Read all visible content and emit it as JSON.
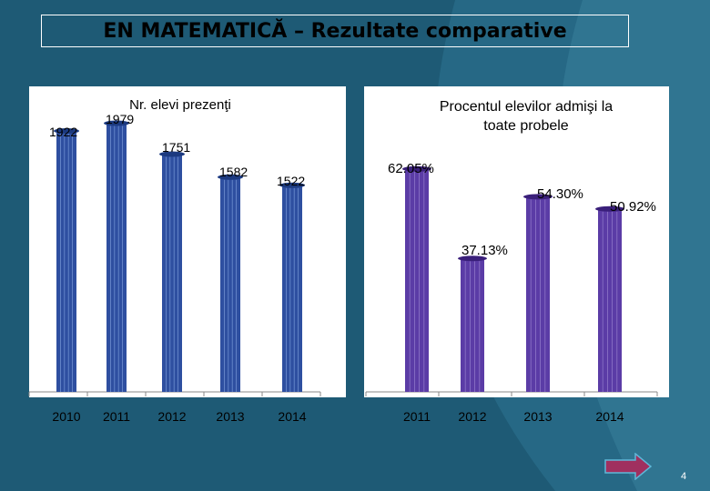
{
  "slide": {
    "title": "EN MATEMATICĂ – Rezultate comparative",
    "page_number": "4",
    "next_icon": "arrow-right-icon"
  },
  "colors": {
    "background": "#1e5a75",
    "panel": "#ffffff",
    "left_bars": "#2e4fa0",
    "right_bars": "#5b3ca6",
    "arrow_fill": "#a0305f"
  },
  "chart_data": [
    {
      "type": "bar",
      "title": "Nr. elevi prezenţi",
      "categories": [
        "2010",
        "2011",
        "2012",
        "2013",
        "2014"
      ],
      "values": [
        1922,
        1979,
        1751,
        1582,
        1522
      ],
      "labels": [
        "1922",
        "1979",
        "1751",
        "1582",
        "1522"
      ],
      "ylim": [
        0,
        2250
      ],
      "xlabel": "",
      "ylabel": ""
    },
    {
      "type": "bar",
      "title": "Procentul elevilor admişi la toate probele",
      "categories": [
        "2011",
        "2012",
        "2013",
        "2014"
      ],
      "values": [
        62.05,
        37.13,
        54.3,
        50.92
      ],
      "labels": [
        "62.05%",
        "37.13%",
        "54.30%",
        "50.92%"
      ],
      "ylim": [
        0,
        85
      ],
      "xlabel": "",
      "ylabel": ""
    }
  ]
}
